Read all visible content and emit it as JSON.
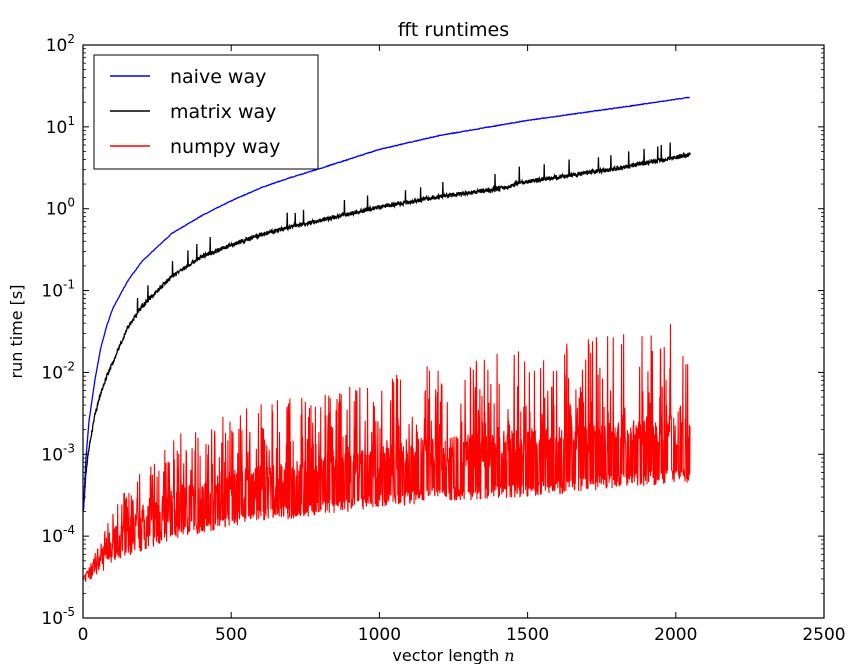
{
  "chart_data": {
    "type": "line",
    "title": "fft runtimes",
    "xlabel_text": "vector length ",
    "xlabel_var": "n",
    "ylabel": "run time [s]",
    "x_scale": "linear",
    "y_scale": "log",
    "xlim": [
      0,
      2500
    ],
    "ylim": [
      1e-05,
      100
    ],
    "x_ticks": [
      0,
      500,
      1000,
      1500,
      2000,
      2500
    ],
    "x_tick_labels": [
      "0",
      "500",
      "1000",
      "1500",
      "2000",
      "2500"
    ],
    "y_tick_exponents": [
      -5,
      -4,
      -3,
      -2,
      -1,
      0,
      1,
      2
    ],
    "y_tick_base": "10",
    "y_tick_exponent_labels": [
      "-5",
      "-4",
      "-3",
      "-2",
      "-1",
      "0",
      "1",
      "2"
    ],
    "grid": false,
    "legend_position": "top-left",
    "series": [
      {
        "name": "naive way",
        "color": "#0000ff",
        "style": "smooth",
        "x": [
          1,
          10,
          20,
          40,
          60,
          80,
          100,
          150,
          200,
          300,
          400,
          500,
          600,
          700,
          800,
          1000,
          1200,
          1500,
          1800,
          2048
        ],
        "y": [
          0.0002,
          0.0009,
          0.0025,
          0.008,
          0.02,
          0.037,
          0.06,
          0.13,
          0.23,
          0.5,
          0.82,
          1.25,
          1.8,
          2.4,
          3.1,
          5.3,
          7.8,
          12,
          17,
          23
        ]
      },
      {
        "name": "matrix way",
        "color": "#000000",
        "style": "jitter",
        "x": [
          1,
          10,
          20,
          40,
          60,
          80,
          100,
          150,
          200,
          300,
          400,
          500,
          600,
          700,
          800,
          1000,
          1200,
          1440,
          1460,
          1500,
          1800,
          2048
        ],
        "y": [
          0.0002,
          0.0006,
          0.0012,
          0.003,
          0.0055,
          0.009,
          0.013,
          0.035,
          0.065,
          0.15,
          0.26,
          0.36,
          0.48,
          0.6,
          0.72,
          1.05,
          1.4,
          1.85,
          2.05,
          2.15,
          3.1,
          4.6
        ]
      },
      {
        "name": "numpy way",
        "color": "#ff0000",
        "style": "band",
        "x": [
          1,
          20,
          100,
          200,
          300,
          500,
          800,
          1000,
          1200,
          1500,
          1800,
          2048
        ],
        "y_lower": [
          3e-05,
          3.2e-05,
          5e-05,
          6.5e-05,
          9e-05,
          0.00013,
          0.00018,
          0.00022,
          0.00026,
          0.0003,
          0.00038,
          0.00045
        ],
        "y_typical": [
          3e-05,
          3.5e-05,
          8e-05,
          0.00015,
          0.00025,
          0.0004,
          0.0006,
          0.0008,
          0.001,
          0.0013,
          0.0016,
          0.002
        ],
        "y_upper": [
          3e-05,
          4e-05,
          0.0002,
          0.0008,
          0.0016,
          0.0035,
          0.006,
          0.009,
          0.013,
          0.02,
          0.03,
          0.043
        ]
      }
    ]
  }
}
